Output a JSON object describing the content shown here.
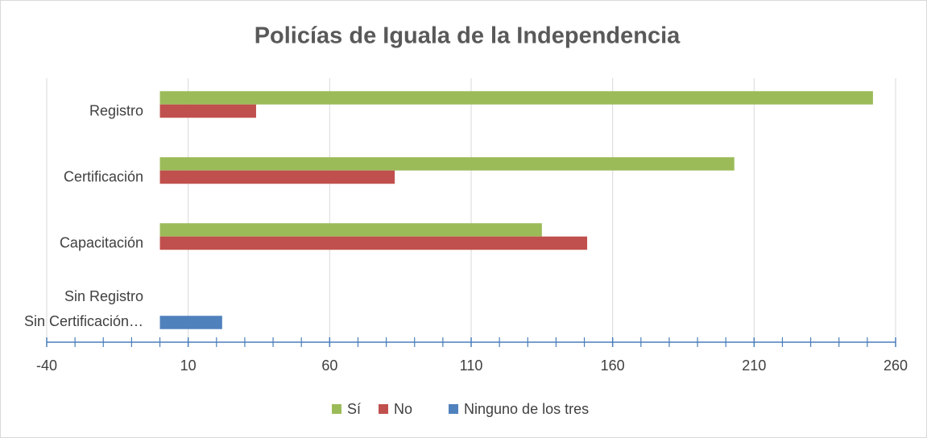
{
  "chart_data": {
    "type": "hbar",
    "title": "Policías de Iguala de la Independencia",
    "categories": [
      "Registro",
      "Certificación",
      "Capacitación",
      "Sin Registro\nSin Certificación…"
    ],
    "series": [
      {
        "name": "Sí",
        "color": "#9bbb59",
        "values": [
          252,
          203,
          135,
          null
        ]
      },
      {
        "name": "No",
        "color": "#c0504d",
        "values": [
          34,
          83,
          151,
          null
        ]
      },
      {
        "name": "Ninguno de los tres",
        "color": "#4f81bd",
        "values": [
          null,
          null,
          null,
          22
        ]
      }
    ],
    "xlim": [
      -40,
      260
    ],
    "xticks": [
      -40,
      10,
      60,
      110,
      160,
      210,
      260
    ],
    "grid": true,
    "legend": "bottom"
  }
}
